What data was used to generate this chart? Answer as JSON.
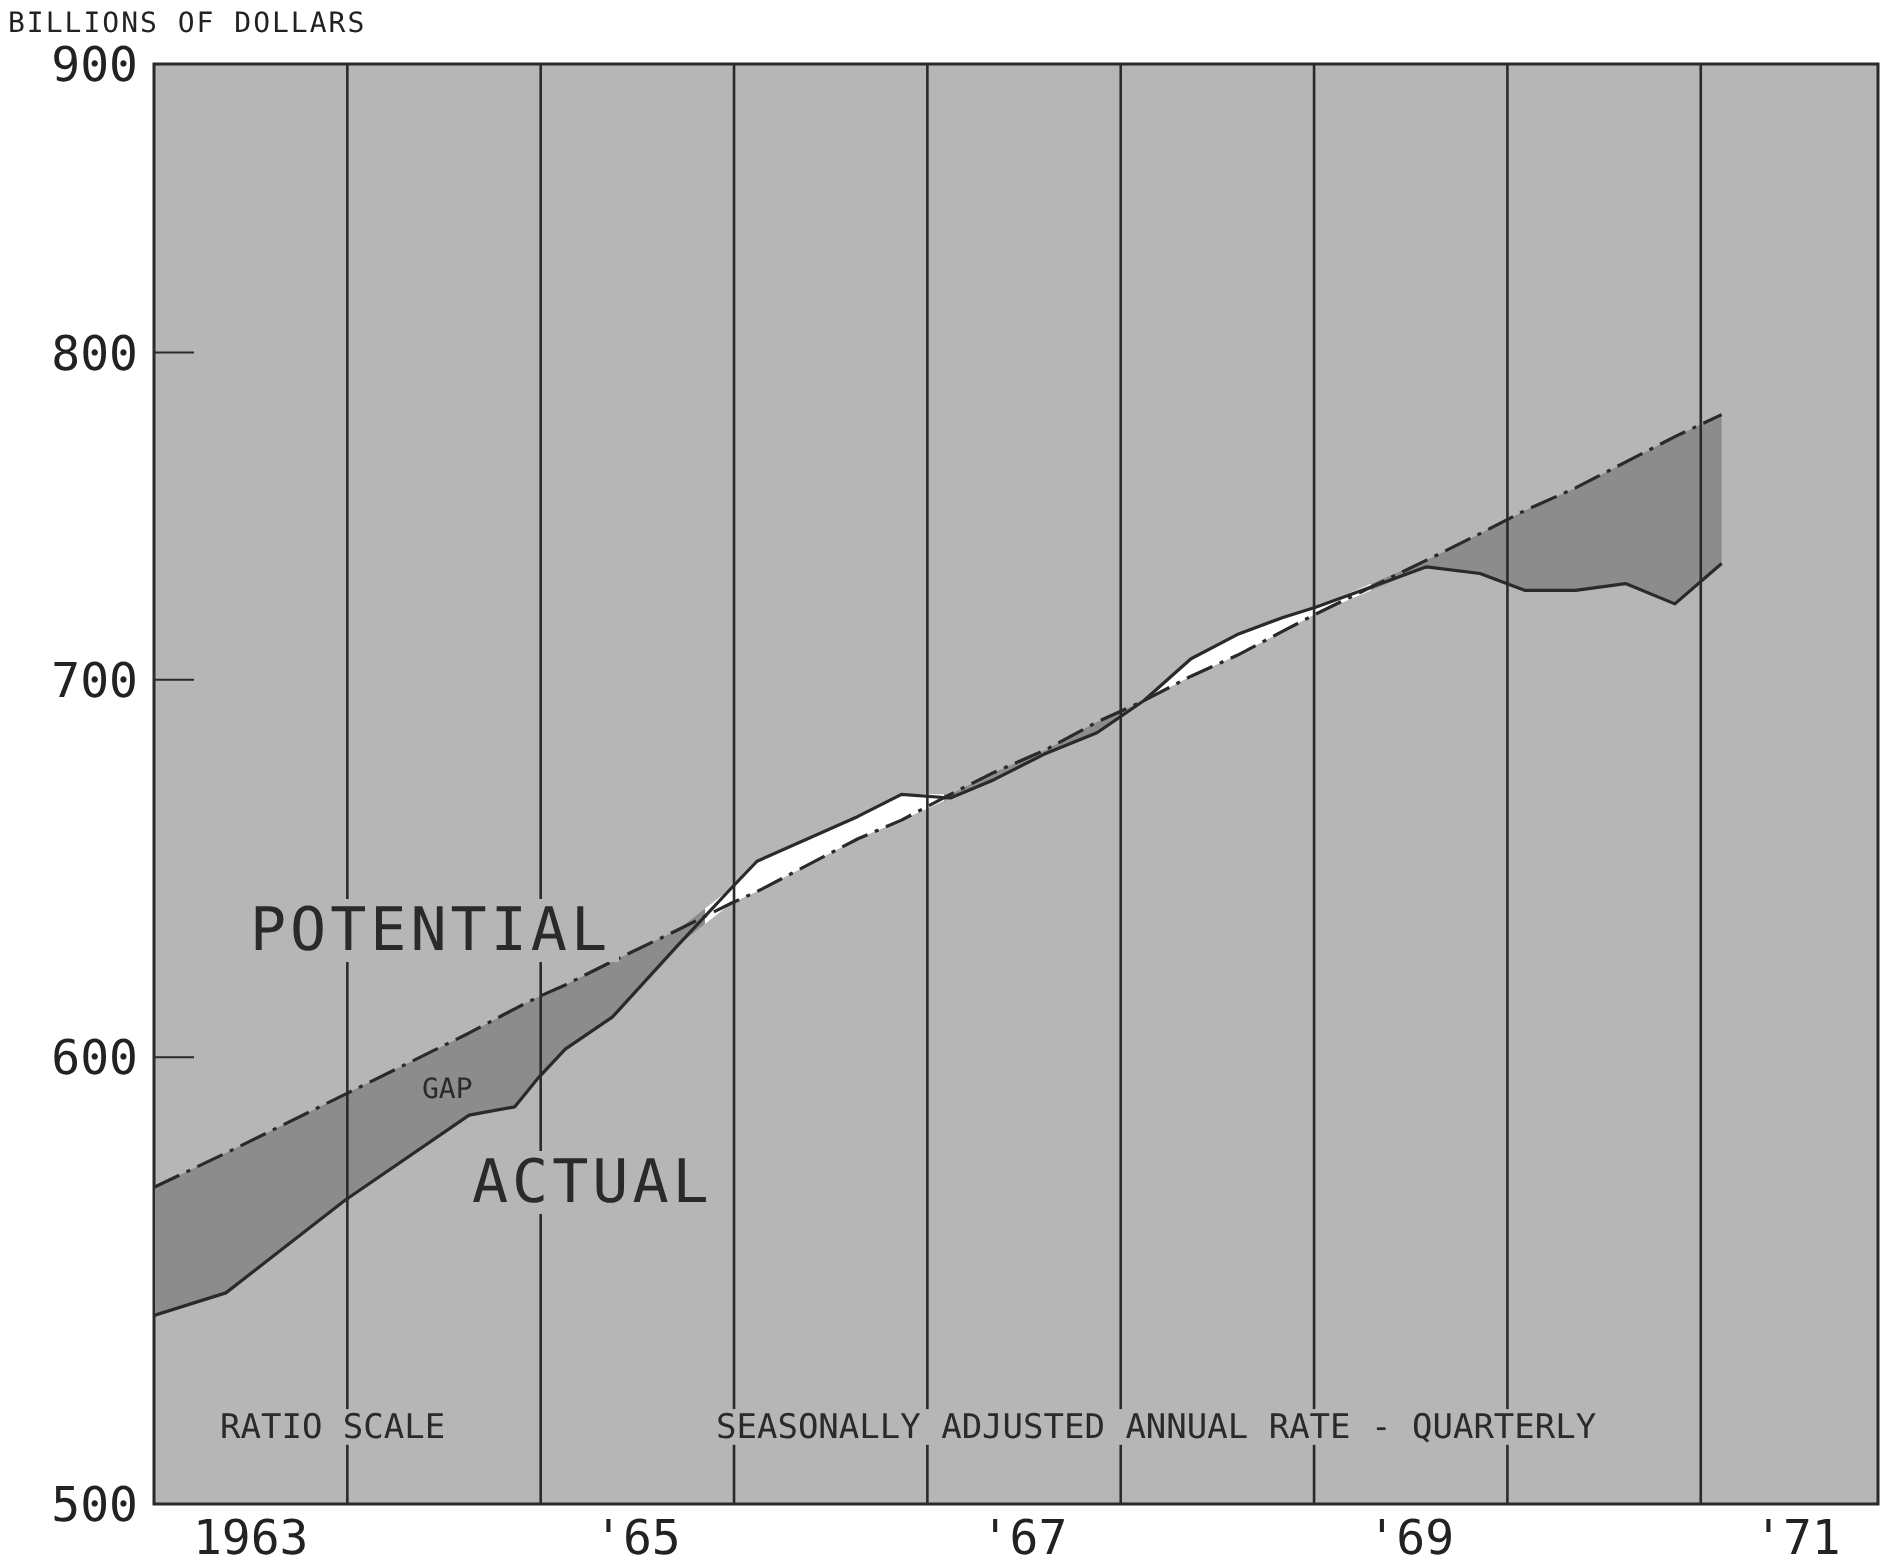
{
  "chart_data": {
    "type": "line",
    "ylabel": "BILLIONS OF DOLLARS",
    "log": "y",
    "ylim": [
      500,
      900
    ],
    "yticks": [
      500,
      600,
      700,
      800,
      900
    ],
    "xlim": [
      "1963",
      "1971-12"
    ],
    "xticks": [
      {
        "value": "1963-07",
        "label": "1963"
      },
      {
        "value": "1965-07",
        "label": "'65"
      },
      {
        "value": "1967-07",
        "label": "'67"
      },
      {
        "value": "1969-07",
        "label": "'69"
      },
      {
        "value": "1971-07",
        "label": "'71"
      }
    ],
    "marker": "none",
    "series": [
      {
        "name": "ACTUAL",
        "color": "#2a2a2a",
        "line_style": "solid",
        "x": [
          "1963-01-01",
          "1963-05-15",
          "1963-12-27",
          "1964-08-18",
          "1964-11-13",
          "1964-12-27",
          "1965-02-17",
          "1965-05-15",
          "1965-09-16",
          "1965-12-27",
          "1966-02-14",
          "1966-08-22",
          "1966-11-13",
          "1967-02-14",
          "1967-05-05",
          "1967-08-08",
          "1967-11-17",
          "1968-02-14",
          "1968-05-12",
          "1968-08-08",
          "1968-11-03",
          "1969-01-04",
          "1969-07-31",
          "1969-11-10",
          "1970-02-03",
          "1970-05-08",
          "1970-08-11",
          "1970-11-13",
          "1971-02-10"
        ],
        "values": [
          540,
          545,
          566,
          586,
          588,
          595,
          602,
          610,
          628,
          643,
          650,
          662,
          668,
          667,
          672,
          679,
          685,
          694,
          706,
          713,
          718,
          721,
          733,
          731,
          726,
          726,
          728,
          722,
          734
        ]
      },
      {
        "name": "POTENTIAL",
        "color": "#2a2a2a",
        "line_style": "dashed",
        "x": [
          "1963-01-01",
          "1963-05-15",
          "1963-12-27",
          "1964-08-18",
          "1964-11-13",
          "1964-12-27",
          "1965-02-17",
          "1965-05-15",
          "1965-09-16",
          "1965-12-27",
          "1966-02-14",
          "1966-08-22",
          "1966-11-13",
          "1967-02-14",
          "1967-05-05",
          "1967-08-08",
          "1967-11-17",
          "1968-02-14",
          "1968-05-12",
          "1968-08-08",
          "1968-11-03",
          "1969-01-04",
          "1969-07-31",
          "1969-11-10",
          "1970-02-03",
          "1970-05-08",
          "1970-08-11",
          "1970-11-13",
          "1971-02-10"
        ],
        "values": [
          569,
          577,
          591,
          606,
          612,
          615,
          618,
          624,
          632,
          639,
          642,
          656,
          661,
          668,
          674,
          680,
          688,
          694,
          701,
          707,
          714,
          719,
          735,
          743,
          750,
          757,
          765,
          773,
          780
        ],
        "lower": [
          540,
          545,
          566,
          586,
          588,
          595,
          602,
          610,
          628,
          639,
          642,
          656,
          661,
          667,
          672,
          679,
          685,
          694,
          701,
          707,
          714,
          719,
          733,
          731,
          726,
          726,
          728,
          722,
          734
        ],
        "upper": [
          569,
          577,
          591,
          606,
          612,
          615,
          618,
          624,
          632,
          643,
          650,
          662,
          668,
          668,
          674,
          680,
          688,
          694,
          706,
          713,
          718,
          721,
          735,
          743,
          750,
          757,
          765,
          773,
          780
        ]
      }
    ],
    "ref_lines": [
      {
        "axis": "x",
        "value": "1964",
        "color": "#2a2a2a"
      },
      {
        "axis": "x",
        "value": "1965",
        "color": "#2a2a2a"
      },
      {
        "axis": "x",
        "value": "1966",
        "color": "#2a2a2a"
      },
      {
        "axis": "x",
        "value": "1967",
        "color": "#2a2a2a"
      },
      {
        "axis": "x",
        "value": "1968",
        "color": "#2a2a2a"
      },
      {
        "axis": "x",
        "value": "1969",
        "color": "#2a2a2a"
      },
      {
        "axis": "x",
        "value": "1970",
        "color": "#2a2a2a"
      },
      {
        "axis": "x",
        "value": "1971",
        "color": "#2a2a2a"
      }
    ],
    "annotations": [
      "GAP",
      "RATIO SCALE",
      "SEASONALLY ADJUSTED ANNUAL RATE - QUARTERLY"
    ]
  }
}
